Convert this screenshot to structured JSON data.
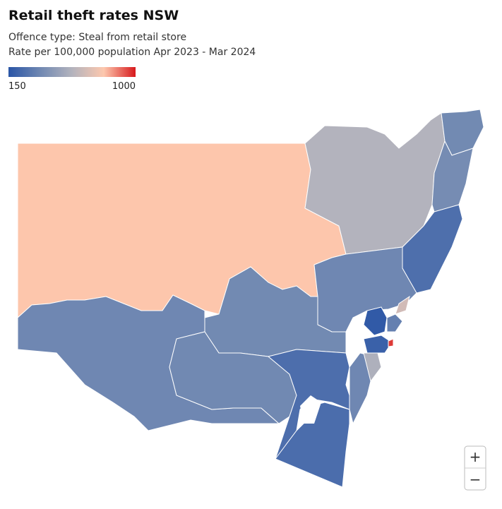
{
  "title": "Retail theft rates NSW",
  "subtitle": [
    "Offence type: Steal from retail store",
    "Rate per 100,000 population Apr 2023 - Mar 2024"
  ],
  "legend": {
    "min": 150,
    "max": 1000,
    "colors": [
      "#2a55a6",
      "#7088b2",
      "#b3b3bd",
      "#fdc8ae",
      "#d7191c"
    ]
  },
  "regions": {
    "values": [
      790,
      575,
      370,
      380,
      260,
      360,
      370,
      360,
      365,
      255,
      250,
      360,
      560,
      170,
      660,
      330,
      200,
      960
    ]
  },
  "zoom": {
    "in": "+",
    "out": "−"
  }
}
